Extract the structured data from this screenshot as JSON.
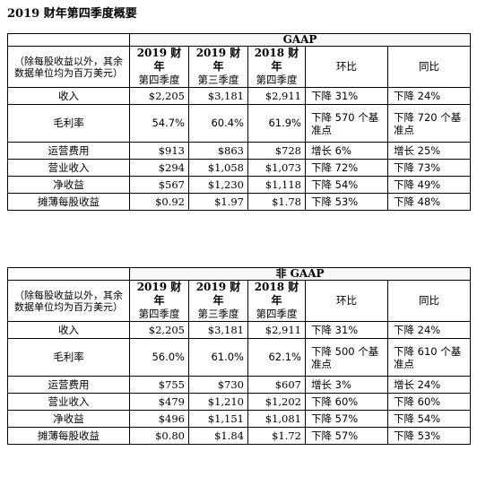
{
  "page_title": "2019 财年第四季度概要",
  "tables": [
    {
      "section": "GAAP",
      "note": "（除每股收益以外，其余数据单位均为百万美元）",
      "columns": [
        {
          "year": "2019 财年",
          "quarter": "第四季度"
        },
        {
          "year": "2019 财年",
          "quarter": "第三季度"
        },
        {
          "year": "2018 财年",
          "quarter": "第四季度"
        },
        {
          "label": "环比"
        },
        {
          "label": "同比"
        }
      ],
      "rows": [
        {
          "label": "收入",
          "q4_2019": "$2,205",
          "q3_2019": "$3,181",
          "q4_2018": "$2,911",
          "qoq": "下降 31%",
          "yoy": "下降 24%"
        },
        {
          "label": "毛利率",
          "q4_2019": "54.7%",
          "q3_2019": "60.4%",
          "q4_2018": "61.9%",
          "qoq": "下降 570 个基准点",
          "yoy": "下降 720 个基准点"
        },
        {
          "label": "运营费用",
          "q4_2019": "$913",
          "q3_2019": "$863",
          "q4_2018": "$728",
          "qoq": "增长 6%",
          "yoy": "增长 25%"
        },
        {
          "label": "营业收入",
          "q4_2019": "$294",
          "q3_2019": "$1,058",
          "q4_2018": "$1,073",
          "qoq": "下降 72%",
          "yoy": "下降 73%"
        },
        {
          "label": "净收益",
          "q4_2019": "$567",
          "q3_2019": "$1,230",
          "q4_2018": "$1,118",
          "qoq": "下降 54%",
          "yoy": "下降 49%"
        },
        {
          "label": "摊薄每股收益",
          "q4_2019": "$0.92",
          "q3_2019": "$1.97",
          "q4_2018": "$1.78",
          "qoq": "下降 53%",
          "yoy": "下降 48%"
        }
      ]
    },
    {
      "section": "非 GAAP",
      "note": "（除每股收益以外，其余数据单位均为百万美元）",
      "columns": [
        {
          "year": "2019 财年",
          "quarter": "第四季度"
        },
        {
          "year": "2019 财年",
          "quarter": "第三季度"
        },
        {
          "year": "2018 财年",
          "quarter": "第四季度"
        },
        {
          "label": "环比"
        },
        {
          "label": "同比"
        }
      ],
      "rows": [
        {
          "label": "收入",
          "q4_2019": "$2,205",
          "q3_2019": "$3,181",
          "q4_2018": "$2,911",
          "qoq": "下降 31%",
          "yoy": "下降 24%"
        },
        {
          "label": "毛利率",
          "q4_2019": "56.0%",
          "q3_2019": "61.0%",
          "q4_2018": "62.1%",
          "qoq": "下降 500 个基准点",
          "yoy": "下降 610 个基准点"
        },
        {
          "label": "运营费用",
          "q4_2019": "$755",
          "q3_2019": "$730",
          "q4_2018": "$607",
          "qoq": "增长 3%",
          "yoy": "增长 24%"
        },
        {
          "label": "营业收入",
          "q4_2019": "$479",
          "q3_2019": "$1,210",
          "q4_2018": "$1,202",
          "qoq": "下降 60%",
          "yoy": "下降 60%"
        },
        {
          "label": "净收益",
          "q4_2019": "$496",
          "q3_2019": "$1,151",
          "q4_2018": "$1,081",
          "qoq": "下降 57%",
          "yoy": "下降 54%"
        },
        {
          "label": "摊薄每股收益",
          "q4_2019": "$0.80",
          "q3_2019": "$1.84",
          "q4_2018": "$1.72",
          "qoq": "下降 57%",
          "yoy": "下降 53%"
        }
      ]
    }
  ]
}
